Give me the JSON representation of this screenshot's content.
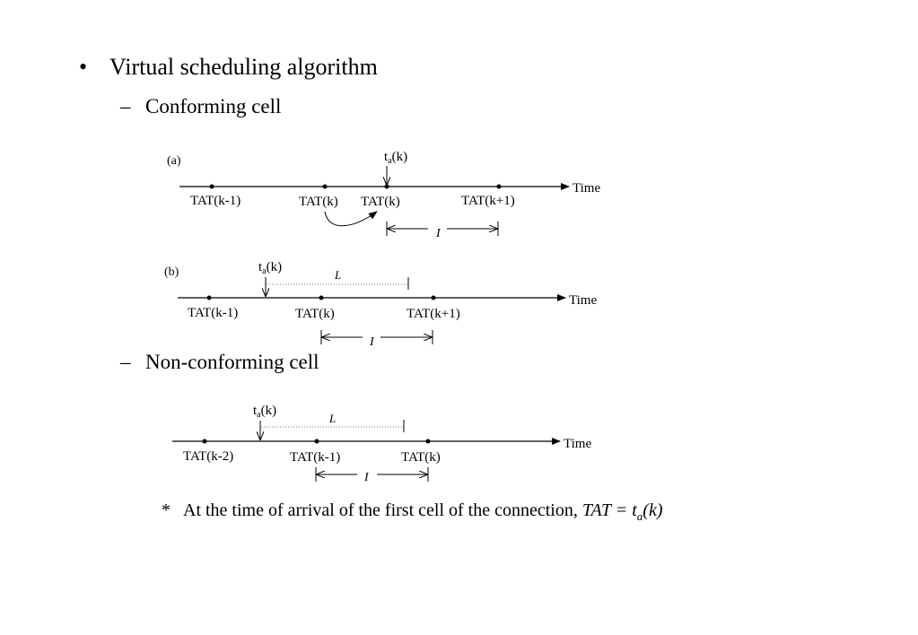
{
  "bullet": "Virtual scheduling algorithm",
  "subs": {
    "conforming": "Conforming cell",
    "nonconforming": "Non-conforming cell"
  },
  "diagrams": {
    "a": {
      "panel_label": "(a)",
      "axis_label": "Time",
      "arrival_label_t": "t",
      "arrival_label_sub": "a",
      "arrival_label_k": "(k)",
      "ticks": [
        "TAT(k-1)",
        "TAT(k)",
        "TAT(k)",
        "TAT(k+1)"
      ],
      "interval_label": "I"
    },
    "b": {
      "panel_label": "(b)",
      "axis_label": "Time",
      "arrival_label_t": "t",
      "arrival_label_sub": "a",
      "arrival_label_k": "(k)",
      "limit_label": "L",
      "ticks": [
        "TAT(k-1)",
        "TAT(k)",
        "TAT(k+1)"
      ],
      "interval_label": "I"
    },
    "c": {
      "axis_label": "Time",
      "arrival_label_t": "t",
      "arrival_label_sub": "a",
      "arrival_label_k": "(k)",
      "limit_label": "L",
      "ticks": [
        "TAT(k-2)",
        "TAT(k-1)",
        "TAT(k)"
      ],
      "interval_label": "I"
    }
  },
  "note": {
    "star": "*",
    "text": "At the time of arrival of the first cell of the connection, ",
    "formula_lhs": "TAT = t",
    "formula_sub": "a",
    "formula_rhs": "(k)"
  }
}
